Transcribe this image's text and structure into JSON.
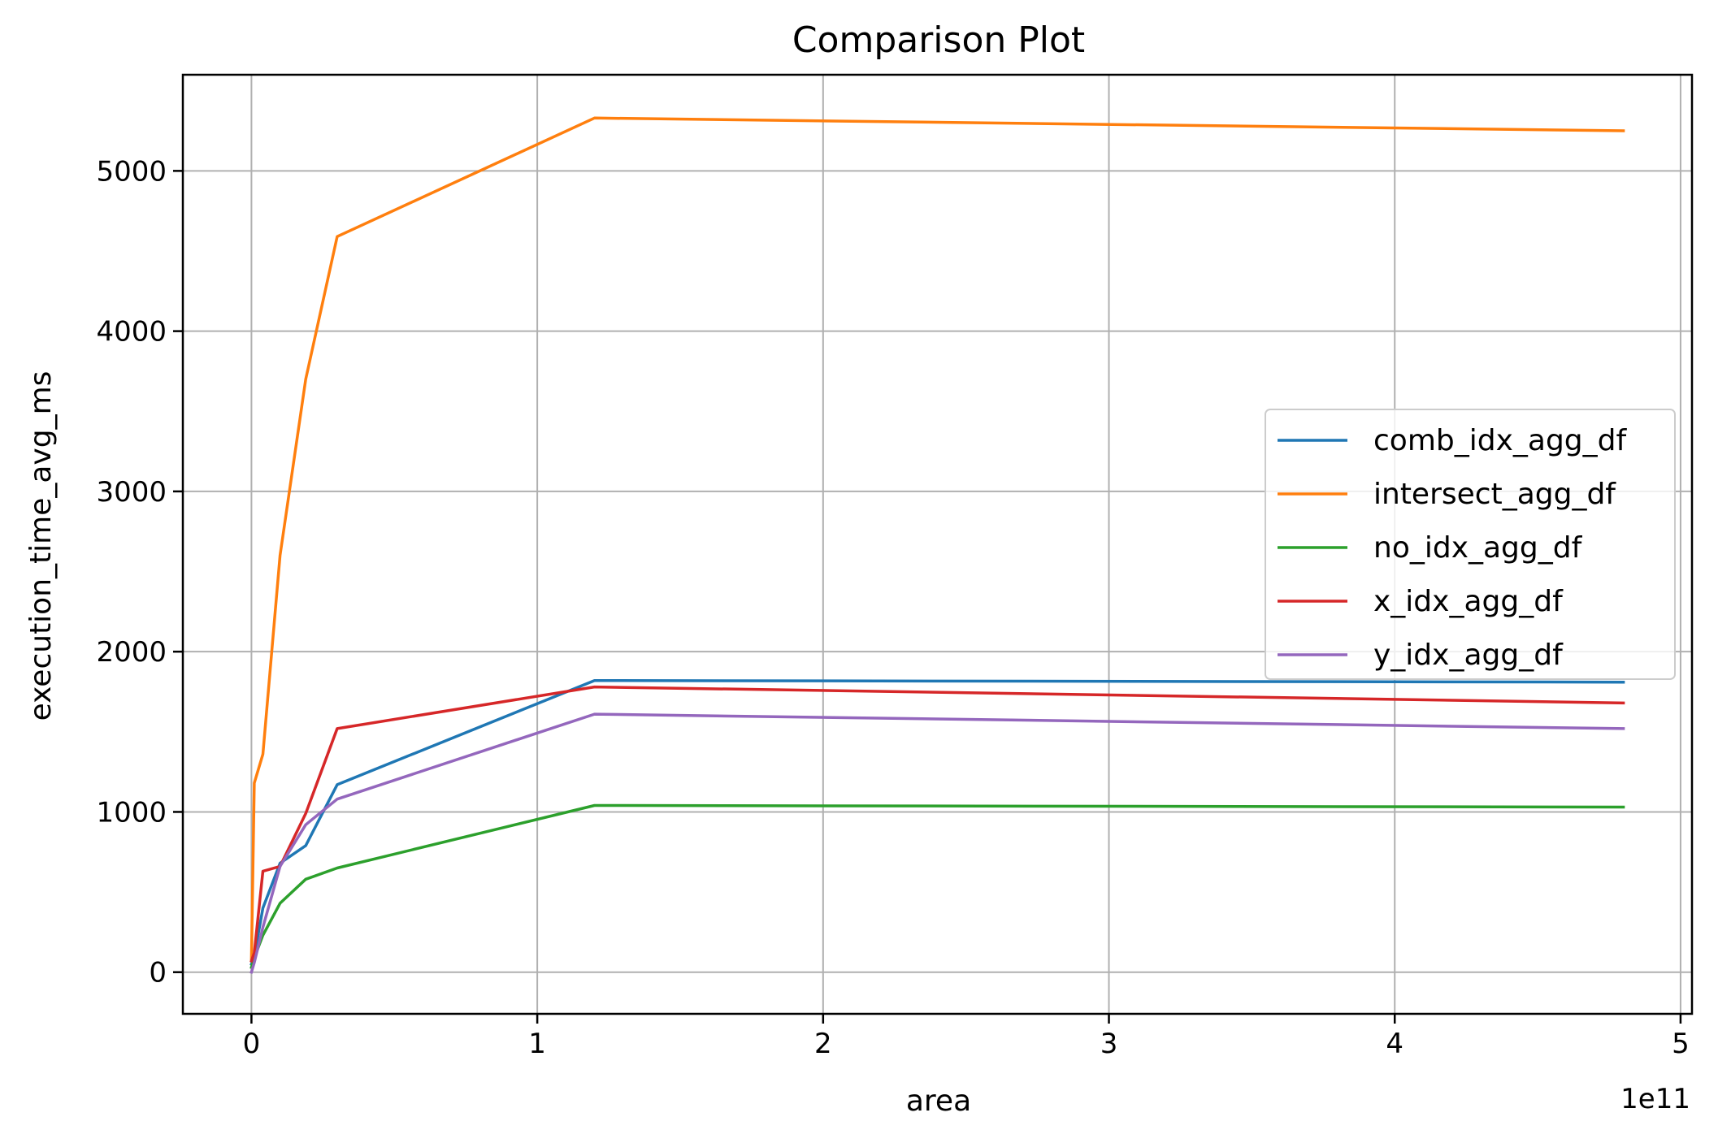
{
  "chart_data": {
    "type": "line",
    "title": "Comparison Plot",
    "xlabel": "area",
    "ylabel": "execution_time_avg_ms",
    "x_offset_text": "1e11",
    "xlim": [
      -0.24,
      5.04
    ],
    "ylim": [
      -260,
      5600
    ],
    "x_ticks": [
      0,
      1,
      2,
      3,
      4,
      5
    ],
    "x_tick_labels": [
      "0",
      "1",
      "2",
      "3",
      "4",
      "5"
    ],
    "y_ticks": [
      0,
      1000,
      2000,
      3000,
      4000,
      5000
    ],
    "y_tick_labels": [
      "0",
      "1000",
      "2000",
      "3000",
      "4000",
      "5000"
    ],
    "grid": true,
    "legend_position": "center-right",
    "series": [
      {
        "name": "comb_idx_agg_df",
        "color": "#1f77b4",
        "x": [
          0,
          0.01,
          0.04,
          0.1,
          0.19,
          0.3,
          1.2,
          4.8
        ],
        "y": [
          50,
          100,
          400,
          680,
          790,
          1170,
          1820,
          1810
        ]
      },
      {
        "name": "intersect_agg_df",
        "color": "#ff7f0e",
        "x": [
          0,
          0.01,
          0.04,
          0.1,
          0.19,
          0.3,
          1.2,
          4.8
        ],
        "y": [
          80,
          1180,
          1360,
          2600,
          3700,
          4590,
          5330,
          5250
        ]
      },
      {
        "name": "no_idx_agg_df",
        "color": "#2ca02c",
        "x": [
          0,
          0.01,
          0.04,
          0.1,
          0.19,
          0.3,
          1.2,
          4.8
        ],
        "y": [
          30,
          90,
          230,
          430,
          580,
          650,
          1040,
          1030
        ]
      },
      {
        "name": "x_idx_agg_df",
        "color": "#d62728",
        "x": [
          0,
          0.01,
          0.04,
          0.1,
          0.19,
          0.3,
          1.2,
          4.8
        ],
        "y": [
          70,
          120,
          630,
          660,
          990,
          1520,
          1780,
          1680
        ]
      },
      {
        "name": "y_idx_agg_df",
        "color": "#9467bd",
        "x": [
          0,
          0.01,
          0.04,
          0.1,
          0.19,
          0.3,
          1.2,
          4.8
        ],
        "y": [
          0,
          60,
          280,
          660,
          920,
          1080,
          1610,
          1520
        ]
      }
    ]
  }
}
